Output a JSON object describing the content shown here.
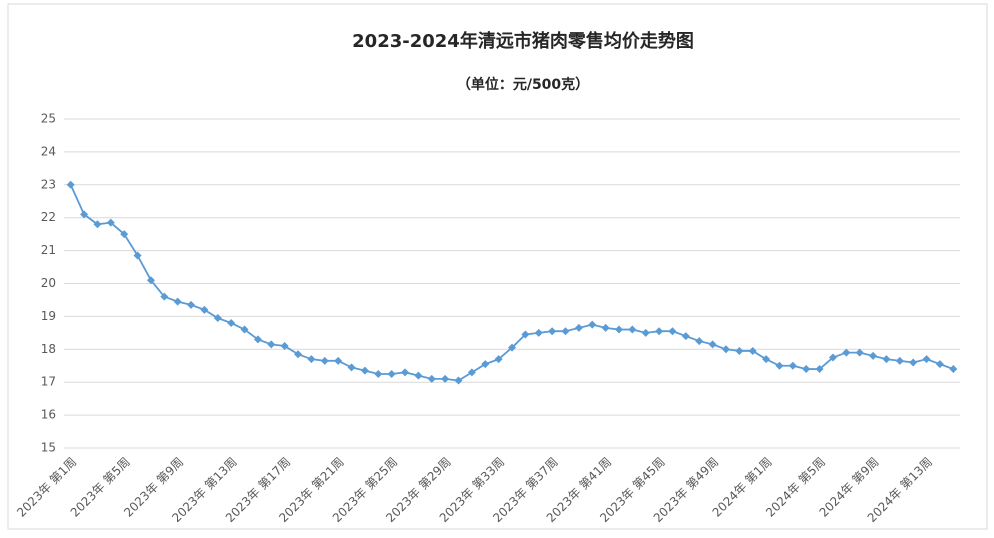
{
  "chart_data": {
    "type": "line",
    "title": "2023-2024年清远市猪肉零售均价走势图",
    "subtitle": "（单位：元/500克）",
    "categories": [
      "2023年 第1周",
      null,
      null,
      null,
      "2023年 第5周",
      null,
      null,
      null,
      "2023年 第9周",
      null,
      null,
      null,
      "2023年 第13周",
      null,
      null,
      null,
      "2023年 第17周",
      null,
      null,
      null,
      "2023年 第21周",
      null,
      null,
      null,
      "2023年 第25周",
      null,
      null,
      null,
      "2023年 第29周",
      null,
      null,
      null,
      "2023年 第33周",
      null,
      null,
      null,
      "2023年 第37周",
      null,
      null,
      null,
      "2023年 第41周",
      null,
      null,
      null,
      "2023年 第45周",
      null,
      null,
      null,
      "2023年 第49周",
      null,
      null,
      null,
      "2024年 第1周",
      null,
      null,
      null,
      "2024年 第5周",
      null,
      null,
      null,
      "2024年 第9周",
      null,
      null,
      null,
      "2024年 第13周",
      null,
      null
    ],
    "values": [
      23.0,
      22.1,
      21.8,
      21.85,
      21.5,
      20.85,
      20.1,
      19.6,
      19.45,
      19.35,
      19.2,
      18.95,
      18.8,
      18.6,
      18.3,
      18.15,
      18.1,
      17.85,
      17.7,
      17.65,
      17.65,
      17.45,
      17.35,
      17.25,
      17.25,
      17.3,
      17.2,
      17.1,
      17.1,
      17.05,
      17.3,
      17.55,
      17.7,
      18.05,
      18.45,
      18.5,
      18.55,
      18.55,
      18.65,
      18.75,
      18.65,
      18.6,
      18.6,
      18.5,
      18.55,
      18.55,
      18.4,
      18.25,
      18.15,
      18.0,
      17.95,
      17.95,
      17.7,
      17.5,
      17.5,
      17.4,
      17.4,
      17.75,
      17.9,
      17.9,
      17.8,
      17.7,
      17.65,
      17.6,
      17.7,
      17.55,
      17.4
    ],
    "color": "#5b9bd5",
    "ylim": [
      15,
      25
    ],
    "yticks": [
      15,
      16,
      17,
      18,
      19,
      20,
      21,
      22,
      23,
      24,
      25
    ],
    "grid": true
  }
}
